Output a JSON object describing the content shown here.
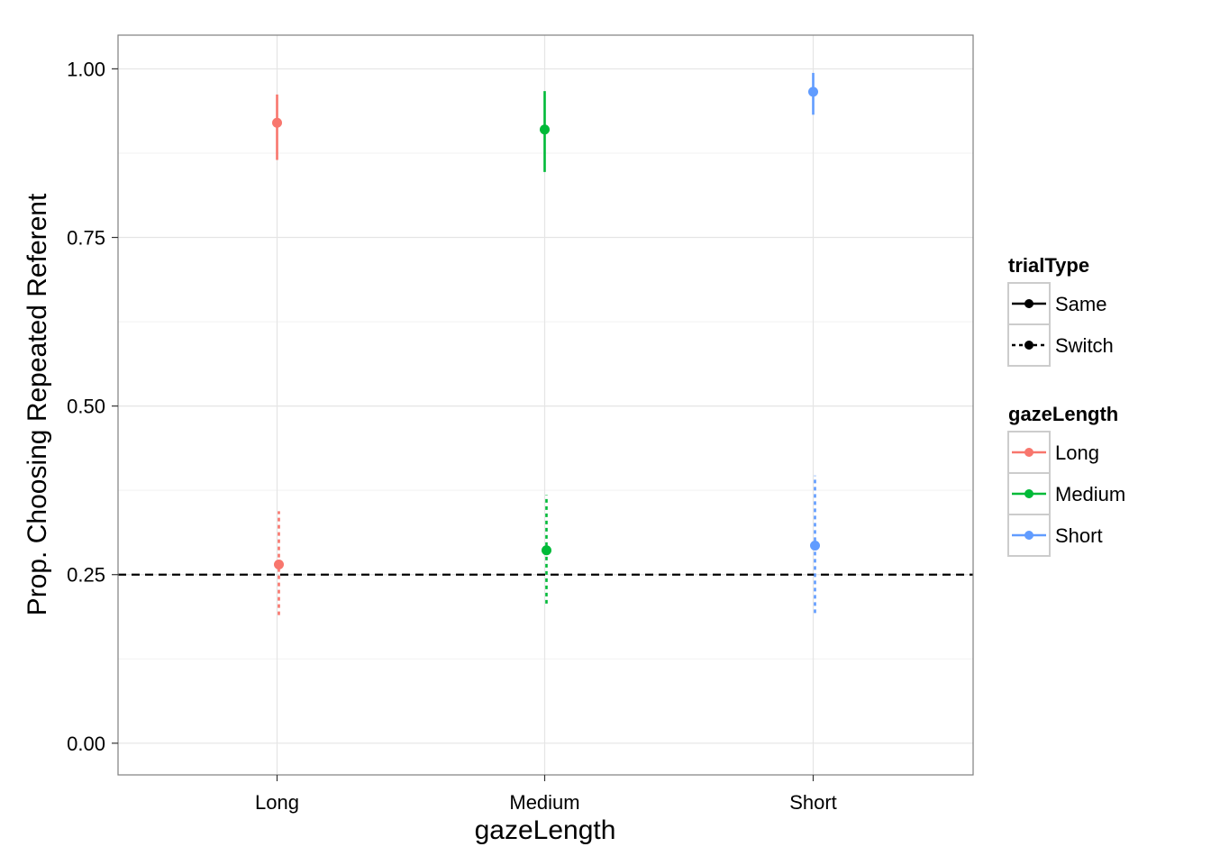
{
  "chart_data": {
    "type": "scatter",
    "title": "",
    "xlabel": "gazeLength",
    "ylabel": "Prop. Choosing Repeated Referent",
    "categories": [
      "Long",
      "Medium",
      "Short"
    ],
    "ylim": [
      -0.047,
      1.05
    ],
    "y_ticks": [
      0.0,
      0.25,
      0.5,
      0.75,
      1.0
    ],
    "y_tick_labels": [
      "0.00",
      "0.25",
      "0.50",
      "0.75",
      "1.00"
    ],
    "grid": true,
    "reference_line": {
      "y": 0.25,
      "style": "dashed",
      "color": "#000000"
    },
    "colors": {
      "Long": "#F8766D",
      "Medium": "#00BA38",
      "Short": "#619CFF"
    },
    "series": [
      {
        "name": "Same",
        "line_style": "solid",
        "points": [
          {
            "x": "Long",
            "y": 0.92,
            "ymin": 0.865,
            "ymax": 0.962
          },
          {
            "x": "Medium",
            "y": 0.91,
            "ymin": 0.847,
            "ymax": 0.967
          },
          {
            "x": "Short",
            "y": 0.966,
            "ymin": 0.932,
            "ymax": 0.994
          }
        ]
      },
      {
        "name": "Switch",
        "line_style": "dotted",
        "points": [
          {
            "x": "Long",
            "y": 0.265,
            "ymin": 0.19,
            "ymax": 0.344
          },
          {
            "x": "Medium",
            "y": 0.286,
            "ymin": 0.207,
            "ymax": 0.368
          },
          {
            "x": "Short",
            "y": 0.293,
            "ymin": 0.193,
            "ymax": 0.397
          }
        ]
      }
    ],
    "legends": [
      {
        "title": "trialType",
        "entries": [
          {
            "label": "Same",
            "line_style": "solid",
            "color": "#000000"
          },
          {
            "label": "Switch",
            "line_style": "dotted",
            "color": "#000000"
          }
        ]
      },
      {
        "title": "gazeLength",
        "entries": [
          {
            "label": "Long",
            "line_style": "solid",
            "color": "#F8766D"
          },
          {
            "label": "Medium",
            "line_style": "solid",
            "color": "#00BA38"
          },
          {
            "label": "Short",
            "line_style": "solid",
            "color": "#619CFF"
          }
        ]
      }
    ],
    "legend_position": "right"
  }
}
